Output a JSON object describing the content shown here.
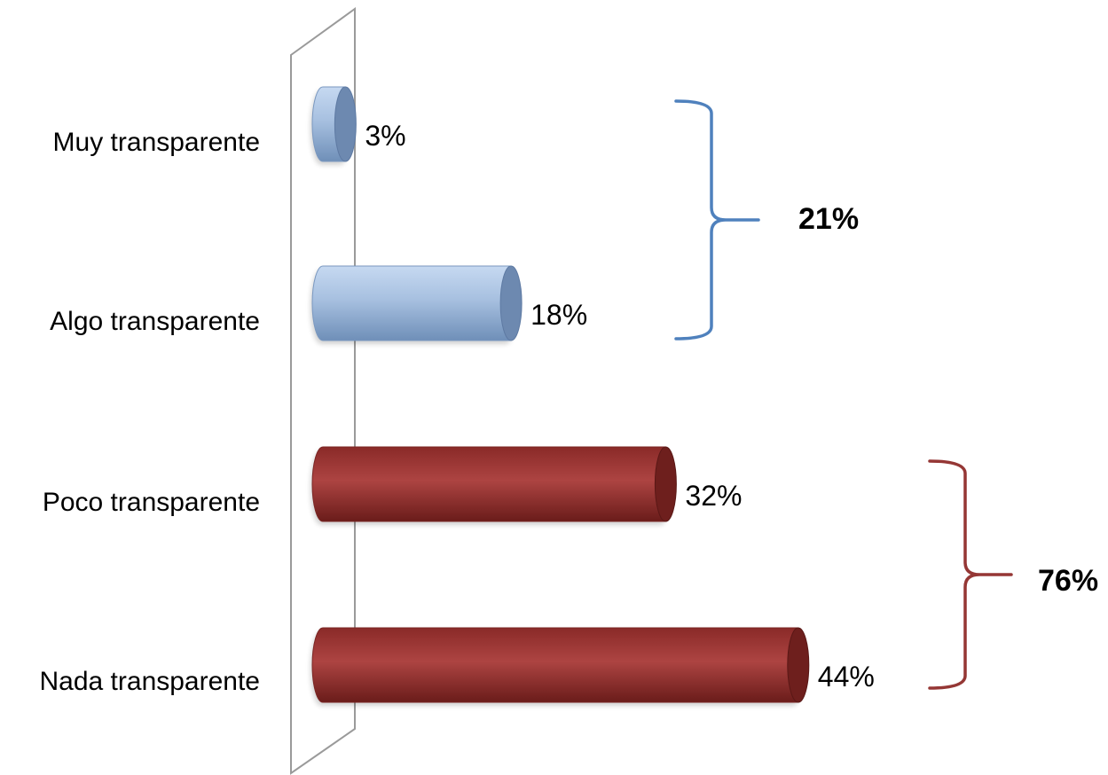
{
  "chart_data": {
    "type": "bar",
    "orientation": "horizontal",
    "style": "3d-cylinder",
    "categories": [
      "Muy transparente",
      "Algo transparente",
      "Poco transparente",
      "Nada transparente"
    ],
    "values": [
      3,
      18,
      32,
      44
    ],
    "value_labels": [
      "3%",
      "18%",
      "32%",
      "44%"
    ],
    "bar_colors": [
      "#95b3d7",
      "#95b3d7",
      "#a0403e",
      "#a0403e"
    ],
    "xlim": [
      0,
      50
    ],
    "grid": false,
    "legend": "none",
    "groups": [
      {
        "label": "21%",
        "members": [
          "Muy transparente",
          "Algo transparente"
        ],
        "color": "#4f81bd"
      },
      {
        "label": "76%",
        "members": [
          "Poco transparente",
          "Nada transparente"
        ],
        "color": "#953735"
      }
    ]
  }
}
